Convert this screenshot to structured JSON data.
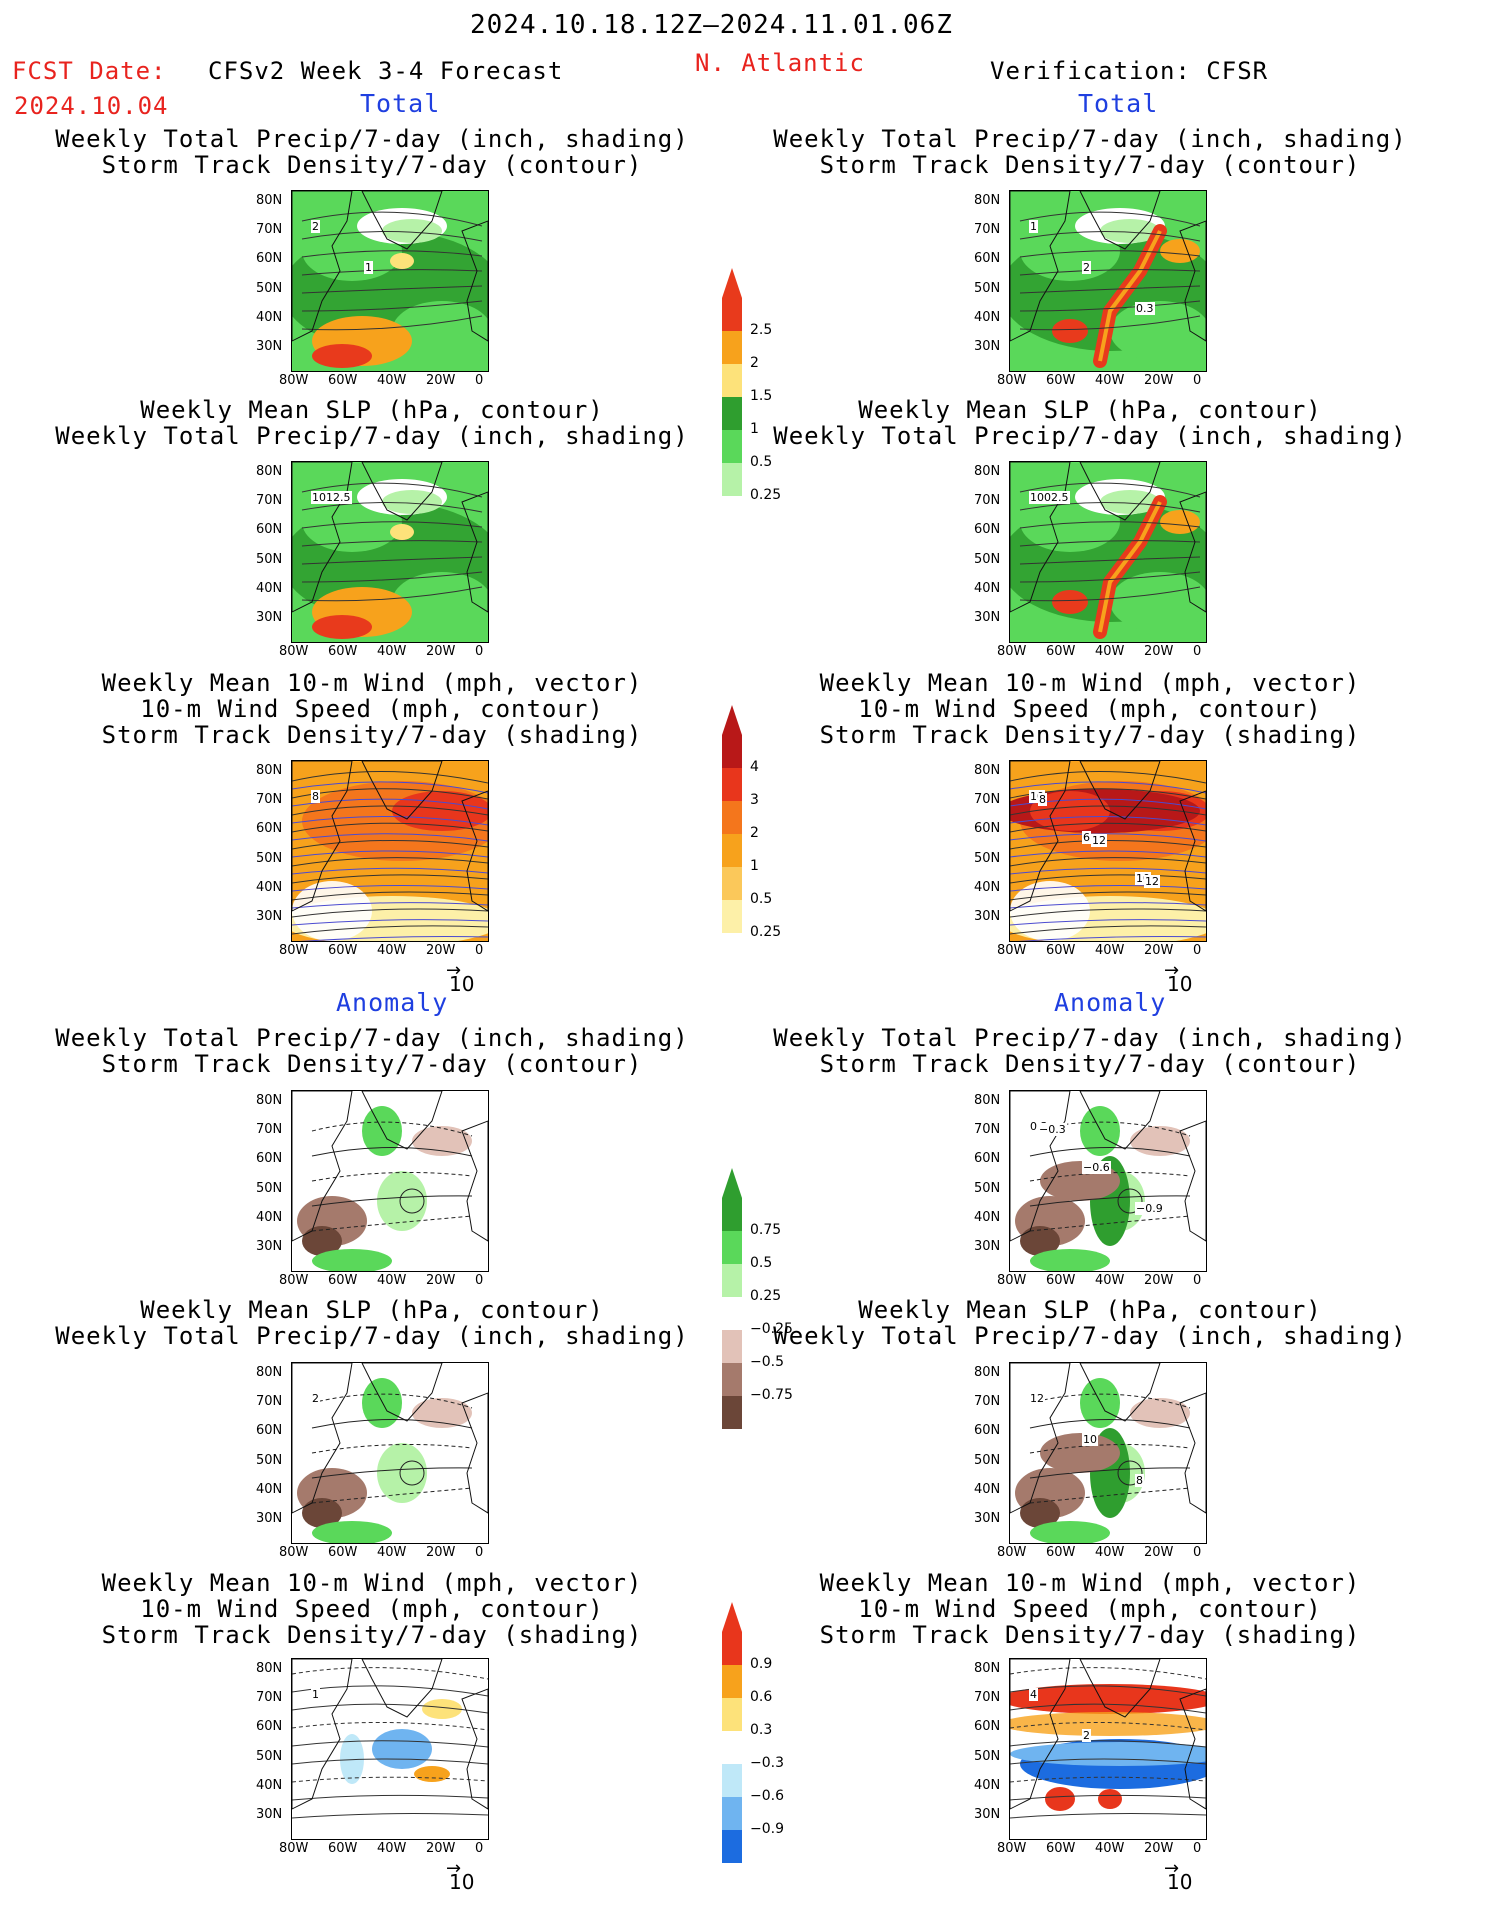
{
  "header": {
    "date_range": "2024.10.18.12Z–2024.11.01.06Z",
    "fcst_label": "FCST Date:",
    "fcst_date": "2024.10.04",
    "model": "CFSv2 Week 3-4 Forecast",
    "region": "N. Atlantic",
    "verification": "Verification: CFSR"
  },
  "sections": {
    "total": "Total",
    "anomaly": "Anomaly"
  },
  "titles": {
    "precip_track": [
      "Weekly Total Precip/7-day (inch, shading)",
      "Storm Track Density/7-day (contour)"
    ],
    "slp_precip": [
      "Weekly Mean SLP (hPa, contour)",
      "Weekly Total Precip/7-day (inch, shading)"
    ],
    "wind_track": [
      "Weekly Mean 10-m Wind (mph, vector)",
      "10-m Wind Speed (mph, contour)",
      "Storm Track Density/7-day (shading)"
    ]
  },
  "axes": {
    "lat": [
      "80N",
      "70N",
      "60N",
      "50N",
      "40N",
      "30N"
    ],
    "lon": [
      "80W",
      "60W",
      "40W",
      "20W",
      "0"
    ]
  },
  "vector_ref": "10",
  "colorbars": {
    "precip_total": {
      "labels": [
        "2.5",
        "2",
        "1.5",
        "1",
        "0.5",
        "0.25"
      ],
      "colors": [
        "#e83a1c",
        "#f7a21c",
        "#fde27a",
        "#2f9e2f",
        "#5ad85a",
        "#b6f2a8"
      ]
    },
    "track_total": {
      "labels": [
        "4",
        "3",
        "2",
        "1",
        "0.5",
        "0.25"
      ],
      "colors": [
        "#b81818",
        "#e8361c",
        "#f4761c",
        "#f7a21c",
        "#fbc85a",
        "#fdf0a8"
      ]
    },
    "precip_anom": {
      "labels": [
        "0.75",
        "0.5",
        "0.25",
        "−0.25",
        "−0.5",
        "−0.75"
      ],
      "colors": [
        "#2f9e2f",
        "#5ad85a",
        "#b6f2a8",
        "#ffffff",
        "#e2c2b8",
        "#a57a6c",
        "#6b4638"
      ]
    },
    "track_anom": {
      "labels": [
        "0.9",
        "0.6",
        "0.3",
        "−0.3",
        "−0.6",
        "−0.9"
      ],
      "colors": [
        "#e8361c",
        "#f7a21c",
        "#fde27a",
        "#ffffff",
        "#bfe8f8",
        "#6fb4f0",
        "#1c6ce0"
      ]
    }
  },
  "contour_labels": {
    "r1_left": [
      "2",
      "1"
    ],
    "r1_right": [
      "1",
      "2",
      "0.3"
    ],
    "r2_left": [
      "1012.5"
    ],
    "r2_right": [
      "1002.5"
    ],
    "r3_left": [
      "8"
    ],
    "r3_right": [
      "10",
      "6",
      "10",
      "8",
      "12",
      "12"
    ],
    "r4_right": [
      "0.3",
      "−0.6",
      "−0.9",
      "−0.3"
    ],
    "r5_left": [
      "2"
    ],
    "r5_right": [
      "12",
      "10",
      "8"
    ],
    "r6_left": [
      "1"
    ],
    "r6_right": [
      "4",
      "2"
    ]
  }
}
